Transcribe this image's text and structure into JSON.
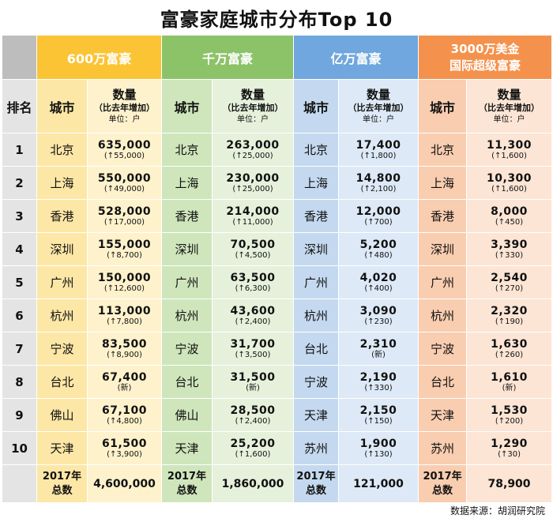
{
  "title": "富豪家庭城市分布Top 10",
  "groups": [
    {
      "label": "600万富豪"
    },
    {
      "label": "千万富豪"
    },
    {
      "label": "亿万富豪"
    },
    {
      "label_line1": "3000万美金",
      "label_line2": "国际超级富豪"
    }
  ],
  "headers": {
    "rank": "排名",
    "city": "城市",
    "count": "数量",
    "count_sub": "（比去年增加）",
    "unit": "单位：户"
  },
  "rows": [
    {
      "rank": "1",
      "c": [
        {
          "city": "北京",
          "n": "635,000",
          "d": "(↑55,000)"
        },
        {
          "city": "北京",
          "n": "263,000",
          "d": "(↑25,000)"
        },
        {
          "city": "北京",
          "n": "17,400",
          "d": "(↑1,800)"
        },
        {
          "city": "北京",
          "n": "11,300",
          "d": "(↑1,600)"
        }
      ]
    },
    {
      "rank": "2",
      "c": [
        {
          "city": "上海",
          "n": "550,000",
          "d": "(↑49,000)"
        },
        {
          "city": "上海",
          "n": "230,000",
          "d": "(↑25,000)"
        },
        {
          "city": "上海",
          "n": "14,800",
          "d": "(↑2,100)"
        },
        {
          "city": "上海",
          "n": "10,300",
          "d": "(↑1,600)"
        }
      ]
    },
    {
      "rank": "3",
      "c": [
        {
          "city": "香港",
          "n": "528,000",
          "d": "(↑17,000)"
        },
        {
          "city": "香港",
          "n": "214,000",
          "d": "(↑11,000)"
        },
        {
          "city": "香港",
          "n": "12,000",
          "d": "(↑700)"
        },
        {
          "city": "香港",
          "n": "8,000",
          "d": "(↑450)"
        }
      ]
    },
    {
      "rank": "4",
      "c": [
        {
          "city": "深圳",
          "n": "155,000",
          "d": "(↑8,700)"
        },
        {
          "city": "深圳",
          "n": "70,500",
          "d": "(↑4,500)"
        },
        {
          "city": "深圳",
          "n": "5,200",
          "d": "(↑480)"
        },
        {
          "city": "深圳",
          "n": "3,390",
          "d": "(↑330)"
        }
      ]
    },
    {
      "rank": "5",
      "c": [
        {
          "city": "广州",
          "n": "150,000",
          "d": "(↑12,600)"
        },
        {
          "city": "广州",
          "n": "63,500",
          "d": "(↑6,300)"
        },
        {
          "city": "广州",
          "n": "4,020",
          "d": "(↑400)"
        },
        {
          "city": "广州",
          "n": "2,540",
          "d": "(↑270)"
        }
      ]
    },
    {
      "rank": "6",
      "c": [
        {
          "city": "杭州",
          "n": "113,000",
          "d": "(↑7,800)"
        },
        {
          "city": "杭州",
          "n": "43,600",
          "d": "(↑2,400)"
        },
        {
          "city": "杭州",
          "n": "3,090",
          "d": "(↑230)"
        },
        {
          "city": "杭州",
          "n": "2,320",
          "d": "(↑190)"
        }
      ]
    },
    {
      "rank": "7",
      "c": [
        {
          "city": "宁波",
          "n": "83,500",
          "d": "(↑8,900)"
        },
        {
          "city": "宁波",
          "n": "31,700",
          "d": "(↑3,500)"
        },
        {
          "city": "台北",
          "n": "2,310",
          "d": "(新)"
        },
        {
          "city": "宁波",
          "n": "1,630",
          "d": "(↑260)"
        }
      ]
    },
    {
      "rank": "8",
      "c": [
        {
          "city": "台北",
          "n": "67,400",
          "d": "(新)"
        },
        {
          "city": "台北",
          "n": "31,500",
          "d": "(新)"
        },
        {
          "city": "宁波",
          "n": "2,190",
          "d": "(↑330)"
        },
        {
          "city": "台北",
          "n": "1,610",
          "d": "(新)"
        }
      ]
    },
    {
      "rank": "9",
      "c": [
        {
          "city": "佛山",
          "n": "67,100",
          "d": "(↑4,800)"
        },
        {
          "city": "佛山",
          "n": "28,500",
          "d": "(↑2,400)"
        },
        {
          "city": "天津",
          "n": "2,150",
          "d": "(↑150)"
        },
        {
          "city": "天津",
          "n": "1,530",
          "d": "(↑200)"
        }
      ]
    },
    {
      "rank": "10",
      "c": [
        {
          "city": "天津",
          "n": "61,500",
          "d": "(↑3,900)"
        },
        {
          "city": "天津",
          "n": "25,200",
          "d": "(↑1,600)"
        },
        {
          "city": "苏州",
          "n": "1,900",
          "d": "(↑130)"
        },
        {
          "city": "苏州",
          "n": "1,290",
          "d": "(↑30)"
        }
      ]
    }
  ],
  "totals": {
    "label_line1": "2017年",
    "label_line2": "总数",
    "values": [
      "4,600,000",
      "1,860,000",
      "121,000",
      "78,900"
    ]
  },
  "source": "数据来源：胡润研究院",
  "colors": {
    "group1": "#fbc434",
    "group2": "#8cc368",
    "group3": "#6fa7de",
    "group4": "#f4924d"
  }
}
